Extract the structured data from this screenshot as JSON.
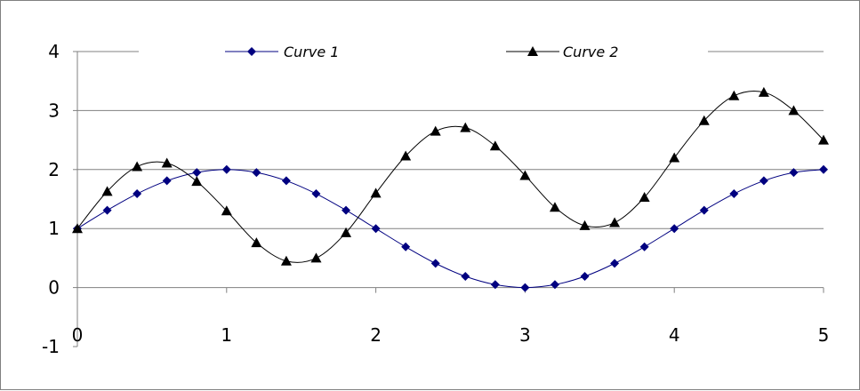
{
  "chart_data": {
    "type": "line",
    "title": "",
    "xlabel": "",
    "ylabel": "",
    "xlim": [
      0,
      5
    ],
    "ylim": [
      -1,
      4
    ],
    "x_ticks": [
      "0",
      "1",
      "2",
      "3",
      "4",
      "5"
    ],
    "y_ticks": [
      "4",
      "3",
      "2",
      "1",
      "0",
      "-1"
    ],
    "grid": "horizontal",
    "legend": "top",
    "series": [
      {
        "name": "Curve 1",
        "color": "#000080",
        "marker": "diamond",
        "x": [
          0,
          0.2,
          0.4,
          0.6,
          0.8,
          1.0,
          1.2,
          1.4,
          1.6,
          1.8,
          2.0,
          2.2,
          2.4,
          2.6,
          2.8,
          3.0,
          3.2,
          3.4,
          3.6,
          3.8,
          4.0,
          4.2,
          4.4,
          4.6,
          4.8,
          5.0
        ],
        "y": [
          1.0,
          1.31,
          1.59,
          1.81,
          1.95,
          2.0,
          1.95,
          1.81,
          1.59,
          1.31,
          1.0,
          0.69,
          0.41,
          0.19,
          0.05,
          0.0,
          0.05,
          0.19,
          0.41,
          0.69,
          1.0,
          1.31,
          1.59,
          1.81,
          1.95,
          2.0
        ]
      },
      {
        "name": "Curve 2",
        "color": "#000000",
        "marker": "triangle",
        "x": [
          0,
          0.2,
          0.4,
          0.6,
          0.8,
          1.0,
          1.2,
          1.4,
          1.6,
          1.8,
          2.0,
          2.2,
          2.4,
          2.6,
          2.8,
          3.0,
          3.2,
          3.4,
          3.6,
          3.8,
          4.0,
          4.2,
          4.4,
          4.6,
          4.8,
          5.0
        ],
        "y": [
          1.0,
          1.63,
          2.05,
          2.11,
          1.8,
          1.3,
          0.76,
          0.45,
          0.5,
          0.93,
          1.6,
          2.23,
          2.65,
          2.71,
          2.4,
          1.9,
          1.36,
          1.05,
          1.1,
          1.53,
          2.2,
          2.83,
          3.25,
          3.31,
          3.0,
          2.5
        ]
      }
    ]
  }
}
